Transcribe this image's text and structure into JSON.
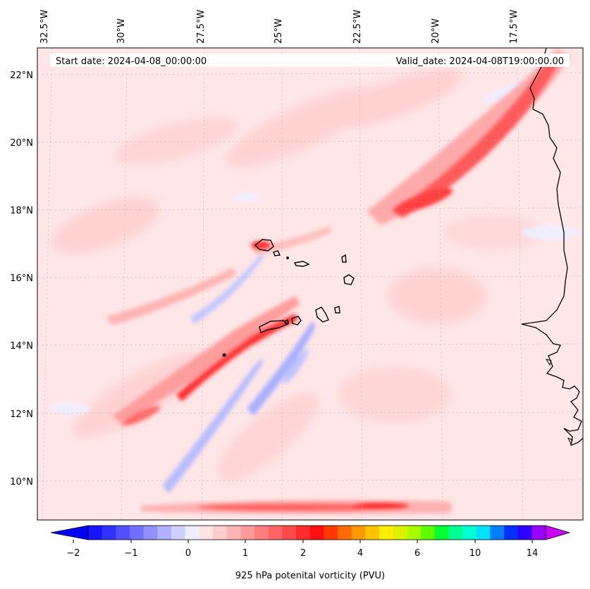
{
  "header": {
    "start_date": "Start date: 2024-04-08_00:00:00",
    "valid_date": "Valid_date: 2024-04-08T19:00:00.00"
  },
  "longitude_labels": [
    "32.5°W",
    "30°W",
    "27.5°W",
    "25°W",
    "22.5°W",
    "20°W",
    "17.5°W"
  ],
  "latitude_labels": [
    "22°N",
    "20°N",
    "18°N",
    "16°N",
    "14°N",
    "12°N",
    "10°N"
  ],
  "colorbar": {
    "label": "925 hPa potenital vorticity (PVU)",
    "tick_labels": [
      "−2",
      "−1",
      "0",
      "1",
      "2",
      "4",
      "6",
      "10",
      "14"
    ],
    "colors": [
      "#1414ff",
      "#3232ff",
      "#5050ff",
      "#7070ff",
      "#9090ff",
      "#b0b0ff",
      "#d0d0ff",
      "#eeeeff",
      "#ffe4e4",
      "#ffcccc",
      "#ffb4b4",
      "#ff9a9a",
      "#ff7f7f",
      "#ff6464",
      "#ff4848",
      "#ff2c2c",
      "#ff1010",
      "#ff3a00",
      "#ff6a00",
      "#ff9a00",
      "#ffc400",
      "#ffee00",
      "#ddf000",
      "#a8ff00",
      "#60ff00",
      "#00ff30",
      "#00ff90",
      "#00ffd0",
      "#00e0ff",
      "#0080ff",
      "#0030ff",
      "#3000ff",
      "#9800ff"
    ],
    "under_color": "#0000ff",
    "over_color": "#cc00ff"
  },
  "map": {
    "background_color": "#ffe7e7",
    "coastline_color": "#000000",
    "region": "Cabo Verde and West African coast"
  }
}
